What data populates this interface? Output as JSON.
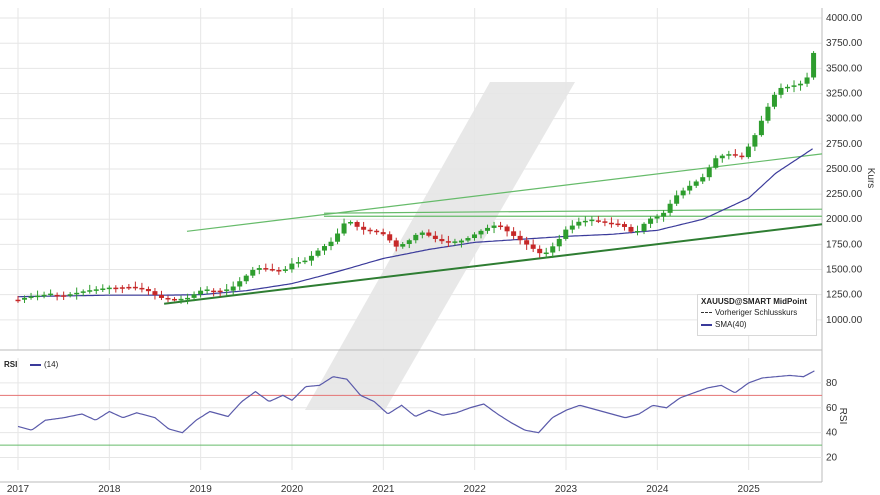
{
  "legend": {
    "title": "XAUUSD@SMART MidPoint",
    "prev_close": "Vorheriger Schlusskurs",
    "sma": "SMA(40)"
  },
  "rsi_panel": {
    "label": "RSI",
    "period": "(14)"
  },
  "colors": {
    "up": "#2e9d2e",
    "down": "#c62828",
    "sma": "#3a3a9a",
    "rsi": "#5a5aaa",
    "trend_dark": "#2e7d32",
    "trend_light": "#66bb6a",
    "rsi_over": "#e57373",
    "rsi_under": "#66bb6a",
    "grid": "#e6e6e6"
  },
  "chart_data": [
    {
      "type": "candlestick",
      "ylabel": "Kurs",
      "ylim": [
        700,
        4100
      ],
      "y_ticks": [
        1000,
        1250,
        1500,
        1750,
        2000,
        2250,
        2500,
        2750,
        3000,
        3250,
        3500,
        3750,
        4000
      ],
      "y_tick_labels": [
        "1000.00",
        "1250.00",
        "1500.00",
        "1750.00",
        "2000.00",
        "2250.00",
        "2500.00",
        "2750.00",
        "3000.00",
        "3250.00",
        "3500.00",
        "3750.00",
        "4000.00"
      ],
      "xlim": [
        2017.0,
        2026.0
      ],
      "x_ticks": [
        2017,
        2018,
        2019,
        2020,
        2021,
        2022,
        2023,
        2024,
        2025
      ],
      "x_tick_labels": [
        "2017",
        "2018",
        "2019",
        "2020",
        "2021",
        "2022",
        "2023",
        "2024",
        "2025"
      ],
      "anchors": [
        [
          2017.0,
          1200
        ],
        [
          2017.12,
          1230
        ],
        [
          2017.3,
          1250
        ],
        [
          2017.5,
          1240
        ],
        [
          2017.75,
          1290
        ],
        [
          2018.0,
          1320
        ],
        [
          2018.2,
          1330
        ],
        [
          2018.4,
          1300
        ],
        [
          2018.55,
          1220
        ],
        [
          2018.7,
          1200
        ],
        [
          2018.85,
          1215
        ],
        [
          2019.0,
          1290
        ],
        [
          2019.3,
          1290
        ],
        [
          2019.45,
          1400
        ],
        [
          2019.6,
          1520
        ],
        [
          2019.75,
          1500
        ],
        [
          2019.9,
          1480
        ],
        [
          2020.0,
          1560
        ],
        [
          2020.15,
          1590
        ],
        [
          2020.3,
          1700
        ],
        [
          2020.45,
          1790
        ],
        [
          2020.6,
          2000
        ],
        [
          2020.75,
          1900
        ],
        [
          2020.9,
          1880
        ],
        [
          2021.0,
          1850
        ],
        [
          2021.15,
          1720
        ],
        [
          2021.3,
          1800
        ],
        [
          2021.4,
          1880
        ],
        [
          2021.6,
          1790
        ],
        [
          2021.75,
          1760
        ],
        [
          2021.9,
          1800
        ],
        [
          2022.1,
          1900
        ],
        [
          2022.25,
          1950
        ],
        [
          2022.4,
          1850
        ],
        [
          2022.55,
          1760
        ],
        [
          2022.75,
          1640
        ],
        [
          2022.9,
          1770
        ],
        [
          2023.0,
          1900
        ],
        [
          2023.15,
          1980
        ],
        [
          2023.3,
          1990
        ],
        [
          2023.45,
          1960
        ],
        [
          2023.6,
          1950
        ],
        [
          2023.75,
          1850
        ],
        [
          2023.9,
          2000
        ],
        [
          2024.05,
          2040
        ],
        [
          2024.2,
          2230
        ],
        [
          2024.35,
          2330
        ],
        [
          2024.5,
          2420
        ],
        [
          2024.65,
          2620
        ],
        [
          2024.8,
          2650
        ],
        [
          2024.92,
          2610
        ],
        [
          2025.05,
          2800
        ],
        [
          2025.2,
          3100
        ],
        [
          2025.32,
          3300
        ],
        [
          2025.45,
          3320
        ],
        [
          2025.58,
          3350
        ],
        [
          2025.68,
          3450
        ],
        [
          2025.73,
          3780
        ]
      ],
      "candle_step": 0.0714,
      "sma_anchors": [
        [
          2017.0,
          1230
        ],
        [
          2018.0,
          1245
        ],
        [
          2018.6,
          1245
        ],
        [
          2019.0,
          1250
        ],
        [
          2019.5,
          1290
        ],
        [
          2020.0,
          1360
        ],
        [
          2020.5,
          1480
        ],
        [
          2021.0,
          1610
        ],
        [
          2021.5,
          1700
        ],
        [
          2022.0,
          1770
        ],
        [
          2022.5,
          1800
        ],
        [
          2023.0,
          1830
        ],
        [
          2023.5,
          1850
        ],
        [
          2024.0,
          1890
        ],
        [
          2024.5,
          2000
        ],
        [
          2025.0,
          2210
        ],
        [
          2025.3,
          2460
        ],
        [
          2025.7,
          2700
        ]
      ],
      "trendlines": [
        {
          "from": [
            2018.6,
            1160
          ],
          "to": [
            2026.0,
            1950
          ],
          "style": "dark"
        },
        {
          "from": [
            2018.85,
            1880
          ],
          "to": [
            2026.0,
            2650
          ],
          "style": "light"
        },
        {
          "from": [
            2020.35,
            2060
          ],
          "to": [
            2026.0,
            2100
          ],
          "style": "light"
        },
        {
          "from": [
            2020.35,
            2030
          ],
          "to": [
            2026.0,
            2030
          ],
          "style": "light"
        }
      ]
    },
    {
      "type": "line",
      "ylabel": "RSI",
      "ylim": [
        10,
        100
      ],
      "y_ticks": [
        20,
        40,
        60,
        80
      ],
      "y_tick_labels": [
        "20",
        "40",
        "60",
        "80"
      ],
      "overbought": 70,
      "oversold": 30,
      "anchors": [
        [
          2017.0,
          45
        ],
        [
          2017.15,
          42
        ],
        [
          2017.3,
          50
        ],
        [
          2017.5,
          52
        ],
        [
          2017.7,
          55
        ],
        [
          2017.85,
          50
        ],
        [
          2018.0,
          57
        ],
        [
          2018.15,
          52
        ],
        [
          2018.3,
          56
        ],
        [
          2018.5,
          52
        ],
        [
          2018.65,
          43
        ],
        [
          2018.8,
          40
        ],
        [
          2018.95,
          50
        ],
        [
          2019.1,
          57
        ],
        [
          2019.3,
          53
        ],
        [
          2019.45,
          65
        ],
        [
          2019.6,
          73
        ],
        [
          2019.75,
          65
        ],
        [
          2019.9,
          70
        ],
        [
          2020.0,
          66
        ],
        [
          2020.15,
          77
        ],
        [
          2020.3,
          78
        ],
        [
          2020.45,
          85
        ],
        [
          2020.6,
          83
        ],
        [
          2020.75,
          70
        ],
        [
          2020.9,
          65
        ],
        [
          2021.05,
          55
        ],
        [
          2021.2,
          62
        ],
        [
          2021.35,
          53
        ],
        [
          2021.5,
          58
        ],
        [
          2021.65,
          54
        ],
        [
          2021.8,
          56
        ],
        [
          2021.95,
          60
        ],
        [
          2022.1,
          63
        ],
        [
          2022.25,
          55
        ],
        [
          2022.4,
          48
        ],
        [
          2022.55,
          42
        ],
        [
          2022.7,
          40
        ],
        [
          2022.85,
          52
        ],
        [
          2023.0,
          58
        ],
        [
          2023.15,
          62
        ],
        [
          2023.3,
          59
        ],
        [
          2023.5,
          55
        ],
        [
          2023.65,
          52
        ],
        [
          2023.8,
          55
        ],
        [
          2023.95,
          62
        ],
        [
          2024.1,
          60
        ],
        [
          2024.25,
          68
        ],
        [
          2024.4,
          72
        ],
        [
          2024.55,
          76
        ],
        [
          2024.7,
          78
        ],
        [
          2024.85,
          72
        ],
        [
          2025.0,
          80
        ],
        [
          2025.15,
          84
        ],
        [
          2025.3,
          85
        ],
        [
          2025.45,
          86
        ],
        [
          2025.6,
          85
        ],
        [
          2025.73,
          90
        ]
      ]
    }
  ]
}
